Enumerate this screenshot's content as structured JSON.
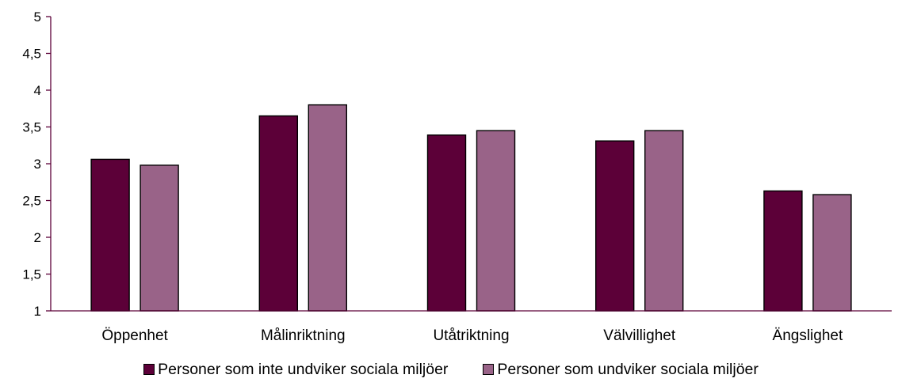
{
  "chart_data": {
    "type": "bar",
    "title": "",
    "xlabel": "",
    "ylabel": "",
    "categories": [
      "Öppenhet",
      "Målinriktning",
      "Utåtriktning",
      "Välvillighet",
      "Ängslighet"
    ],
    "series": [
      {
        "name": "Personer som inte undviker sociala miljöer",
        "color": "#5c0038",
        "values": [
          3.06,
          3.65,
          3.39,
          3.31,
          2.63
        ]
      },
      {
        "name": "Personer som undviker sociala miljöer",
        "color": "#996388",
        "values": [
          2.98,
          3.8,
          3.45,
          3.45,
          2.58
        ]
      }
    ],
    "ylim": [
      1,
      5
    ],
    "yticks": [
      "1",
      "1,5",
      "2",
      "2,5",
      "3",
      "3,5",
      "4",
      "4,5",
      "5"
    ],
    "axis_color": "#5c0038",
    "grid": false,
    "legend_position": "bottom"
  }
}
